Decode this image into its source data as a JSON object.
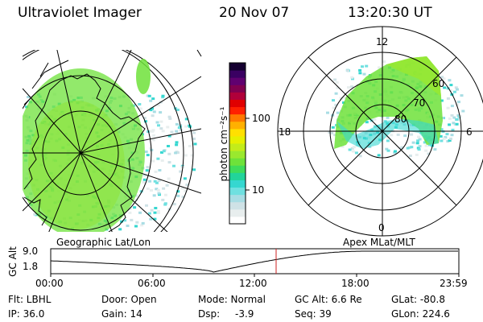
{
  "header": {
    "title": "Ultraviolet Imager",
    "date": "20 Nov 07",
    "time": "13:20:30 UT"
  },
  "colorbar": {
    "label": "photon cm⁻²s⁻¹",
    "ticks": [
      "100",
      "10"
    ],
    "colors": [
      "#ffffff",
      "#e8eeee",
      "#cfe2e6",
      "#a8dde4",
      "#6fe0e0",
      "#35d7d0",
      "#22d49a",
      "#3fdc5a",
      "#6ee23a",
      "#9ae82e",
      "#c3ec1a",
      "#e6f000",
      "#ffe000",
      "#ffb000",
      "#ff7800",
      "#ff2000",
      "#e00000",
      "#b0003a",
      "#800050",
      "#600070",
      "#3a0062",
      "#140030"
    ]
  },
  "left_map": {
    "label": "Geographic Lat/Lon"
  },
  "right_map": {
    "label": "Apex  MLat/MLT",
    "mlt_labels": {
      "top": "12",
      "left": "18",
      "right": "6",
      "bottom": "0"
    },
    "lat_labels": [
      "60",
      "70",
      "80"
    ]
  },
  "alt_plot": {
    "ylabel": "GC Alt",
    "yticks": [
      "9.0",
      "1.8"
    ],
    "xticks": [
      "00:00",
      "06:00",
      "12:00",
      "18:00",
      "23:59"
    ],
    "current_time_color": "#cc2222"
  },
  "footer": {
    "flt": "Flt: LBHL",
    "ip": "IP: 36.0",
    "door": "Door: Open",
    "gain": "Gain: 14",
    "mode": "Mode: Normal",
    "dsp_label": "Dsp:",
    "dsp_value": "-3.9",
    "gc_alt": "GC Alt: 6.6 Re",
    "seq": "Seq: 39",
    "glat": "GLat: -80.8",
    "glon": "GLon: 224.6"
  }
}
